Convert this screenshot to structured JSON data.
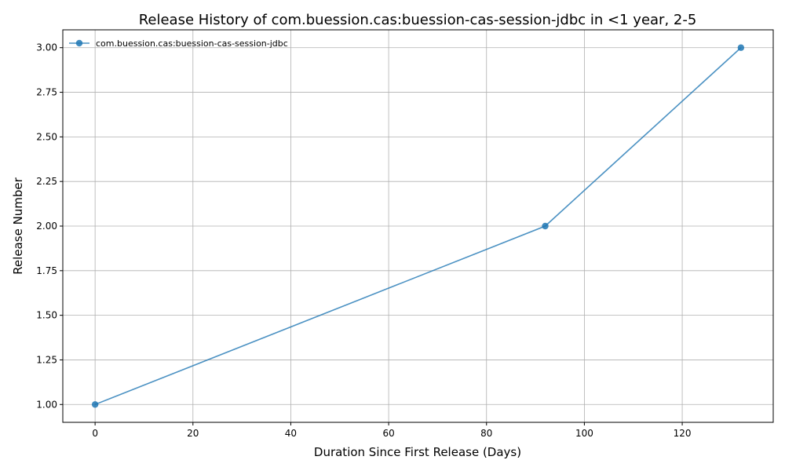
{
  "chart_data": {
    "type": "line",
    "title": "Release History of com.buession.cas:buession-cas-session-jdbc in <1 year, 2-5",
    "xlabel": "Duration Since First Release (Days)",
    "ylabel": "Release Number",
    "xlim": [
      -6.6,
      138.6
    ],
    "ylim": [
      0.9,
      3.1
    ],
    "xticks": [
      0,
      20,
      40,
      60,
      80,
      100,
      120
    ],
    "yticks": [
      1.0,
      1.25,
      1.5,
      1.75,
      2.0,
      2.25,
      2.5,
      2.75,
      3.0
    ],
    "xtick_labels": [
      "0",
      "20",
      "40",
      "60",
      "80",
      "100",
      "120"
    ],
    "ytick_labels": [
      "1.00",
      "1.25",
      "1.50",
      "1.75",
      "2.00",
      "2.25",
      "2.50",
      "2.75",
      "3.00"
    ],
    "grid": true,
    "legend_position": "upper-left",
    "series": [
      {
        "name": "com.buession.cas:buession-cas-session-jdbc",
        "color": "#1f77b4",
        "x": [
          0,
          92,
          132
        ],
        "y": [
          1,
          2,
          3
        ]
      }
    ]
  }
}
